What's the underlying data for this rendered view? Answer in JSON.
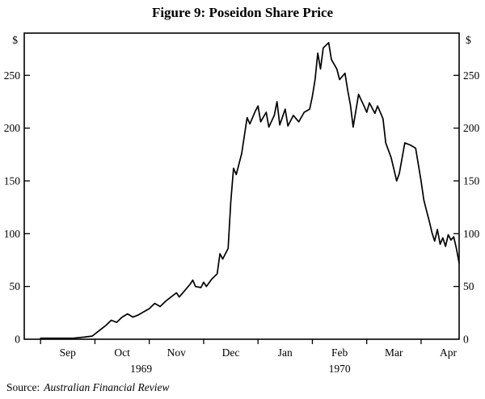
{
  "chart_data": {
    "type": "line",
    "title": "Figure 9: Poseidon Share Price",
    "ylabel_left": "$",
    "ylabel_right": "$",
    "yticks": [
      0,
      50,
      100,
      150,
      200,
      250
    ],
    "ylim": [
      0,
      290
    ],
    "xlim": [
      -0.3,
      7.7
    ],
    "grid": false,
    "legend": "none",
    "month_labels": [
      "Sep",
      "Oct",
      "Nov",
      "Dec",
      "Jan",
      "Feb",
      "Mar",
      "Apr"
    ],
    "year_labels": [
      {
        "label": "1969",
        "x": 1.85
      },
      {
        "label": "1970",
        "x": 5.5
      }
    ],
    "series": [
      {
        "name": "Poseidon share price ($)",
        "x": [
          0.0,
          0.3,
          0.6,
          0.8,
          0.95,
          1.0,
          1.1,
          1.2,
          1.3,
          1.4,
          1.5,
          1.6,
          1.7,
          1.8,
          1.9,
          2.0,
          2.1,
          2.2,
          2.3,
          2.4,
          2.5,
          2.55,
          2.65,
          2.75,
          2.8,
          2.85,
          2.95,
          3.0,
          3.05,
          3.15,
          3.25,
          3.3,
          3.35,
          3.45,
          3.5,
          3.55,
          3.6,
          3.7,
          3.8,
          3.85,
          3.95,
          4.0,
          4.05,
          4.15,
          4.2,
          4.3,
          4.35,
          4.4,
          4.5,
          4.55,
          4.65,
          4.75,
          4.85,
          4.95,
          5.0,
          5.05,
          5.1,
          5.15,
          5.2,
          5.3,
          5.35,
          5.45,
          5.5,
          5.6,
          5.65,
          5.7,
          5.75,
          5.85,
          5.95,
          6.0,
          6.05,
          6.15,
          6.2,
          6.3,
          6.35,
          6.45,
          6.5,
          6.55,
          6.6,
          6.7,
          6.8,
          6.9,
          7.0,
          7.05,
          7.1,
          7.15,
          7.2,
          7.25,
          7.3,
          7.35,
          7.4,
          7.45,
          7.5,
          7.55,
          7.6,
          7.65,
          7.7
        ],
        "values": [
          1,
          1,
          1,
          2,
          3,
          5,
          9,
          13,
          18,
          16,
          21,
          24,
          21,
          23,
          26,
          29,
          34,
          31,
          36,
          40,
          44,
          40,
          46,
          52,
          56,
          50,
          49,
          54,
          50,
          57,
          62,
          81,
          76,
          86,
          130,
          162,
          156,
          176,
          210,
          204,
          216,
          221,
          206,
          215,
          201,
          212,
          225,
          203,
          218,
          202,
          212,
          206,
          215,
          218,
          230,
          246,
          271,
          256,
          276,
          281,
          265,
          256,
          246,
          252,
          236,
          222,
          201,
          232,
          221,
          215,
          224,
          214,
          221,
          209,
          186,
          172,
          161,
          150,
          157,
          186,
          184,
          181,
          150,
          132,
          122,
          112,
          101,
          93,
          104,
          90,
          96,
          88,
          99,
          94,
          97,
          86,
          72
        ]
      }
    ]
  },
  "source": {
    "prefix": "Source:",
    "name": "Australian Financial Review"
  },
  "colors": {
    "line": "#000000",
    "frame": "#000000",
    "background": "#ffffff"
  }
}
